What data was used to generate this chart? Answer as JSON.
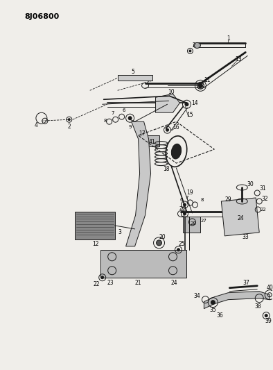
{
  "header": "8J06800",
  "bg": "#f0eeea",
  "lc": "#1a1a1a",
  "fig_w": 3.94,
  "fig_h": 5.33,
  "dpi": 100
}
